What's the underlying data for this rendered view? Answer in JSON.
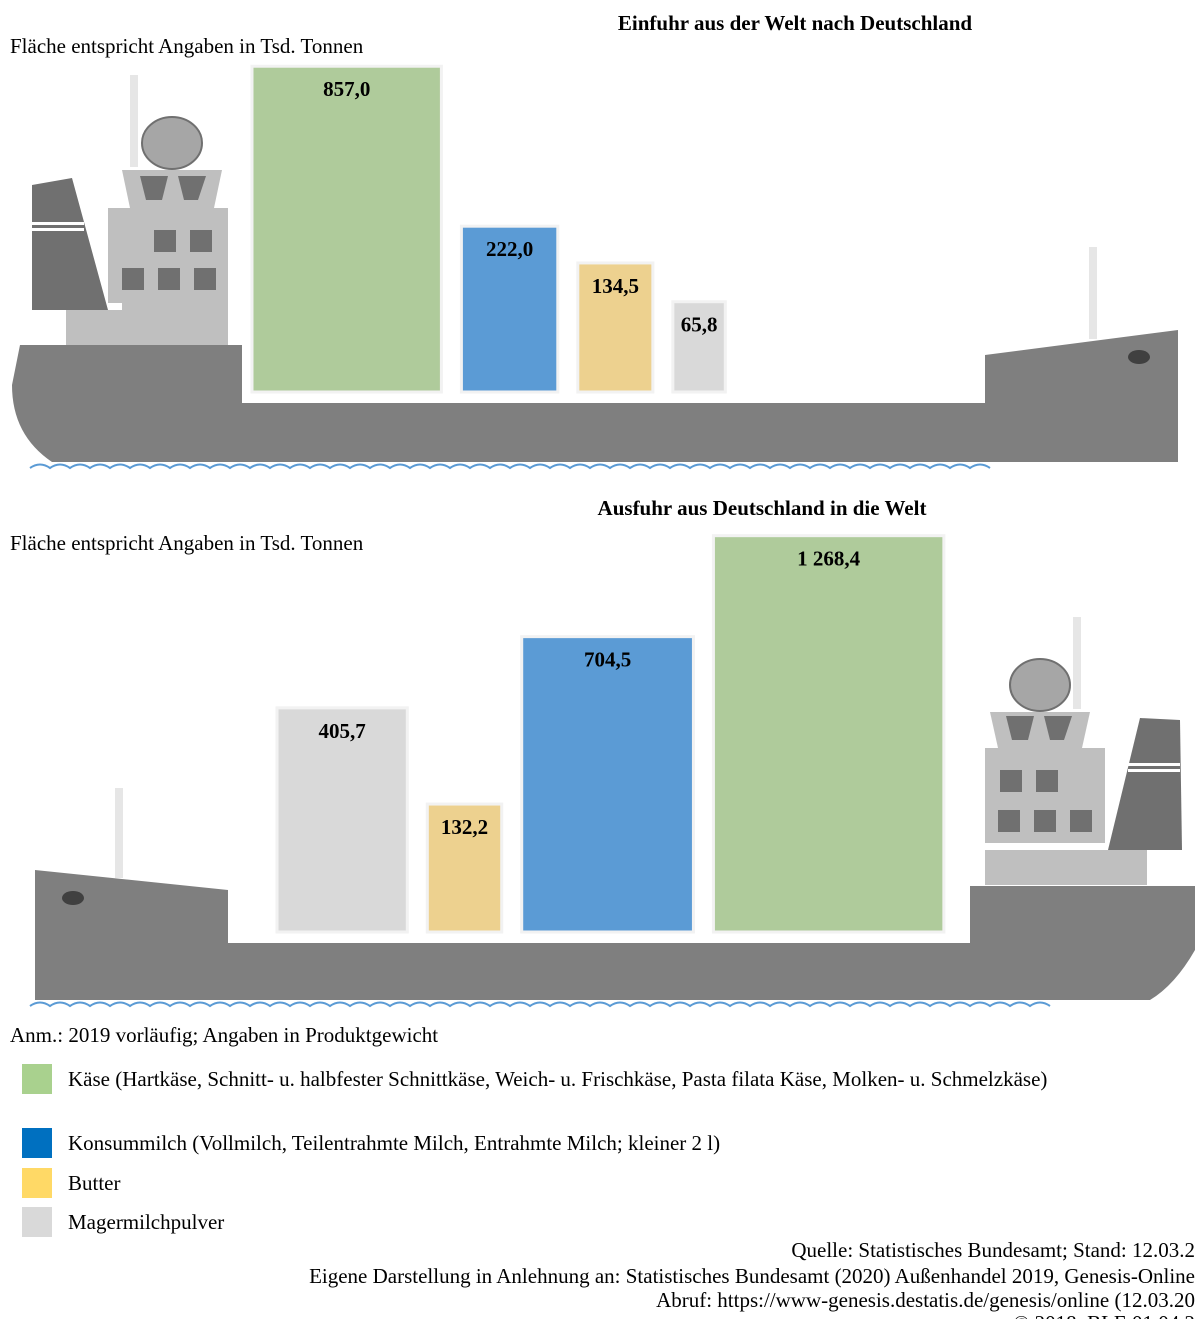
{
  "chart_data": [
    {
      "type": "bar",
      "title": "Einfuhr  aus der Welt nach Deutschland",
      "note": "Fläche entspricht Angaben in Tsd. Tonnen",
      "values": [
        857.0,
        222.0,
        134.5,
        65.8
      ],
      "value_labels": [
        "857,0",
        "222,0",
        "134,5",
        "65,8"
      ],
      "colors": [
        "#afcb9b",
        "#5b9bd5",
        "#edd18f",
        "#d9d9d9"
      ]
    },
    {
      "type": "bar",
      "title": "Ausfuhr aus Deutschland  in die Welt",
      "note": "Fläche entspricht Angaben in Tsd. Tonnen",
      "values": [
        405.7,
        132.2,
        704.5,
        1268.4
      ],
      "value_labels": [
        "405,7",
        "132,2",
        "704,5",
        "1 268,4"
      ],
      "colors": [
        "#d9d9d9",
        "#edd18f",
        "#5b9bd5",
        "#afcb9b"
      ]
    }
  ],
  "annotation": "Anm.: 2019 vorläufig; Angaben in Produktgewicht",
  "legend": [
    {
      "label": "Käse (Hartkäse, Schnitt- u. halbfester Schnittkäse, Weich- u. Frischkäse, Pasta filata Käse, Molken- u. Schmelzkäse)",
      "color": "#a9d18e"
    },
    {
      "label": "Konsummilch (Vollmilch, Teilentrahmte Milch, Entrahmte Milch; kleiner 2 l)",
      "color": "#0070c0"
    },
    {
      "label": "Butter",
      "color": "#ffd966"
    },
    {
      "label": "Magermilchpulver",
      "color": "#d9d9d9"
    }
  ],
  "footer": [
    "Quelle: Statistisches Bundesamt; Stand: 12.03.2",
    "Eigene Darstellung in Anlehnung an: Statistisches Bundesamt (2020) Außenhandel 2019, Genesis-Online",
    "Abruf: https://www-genesis.destatis.de/genesis/online (12.03.20",
    "© 2018, BLE 01.04.2"
  ]
}
